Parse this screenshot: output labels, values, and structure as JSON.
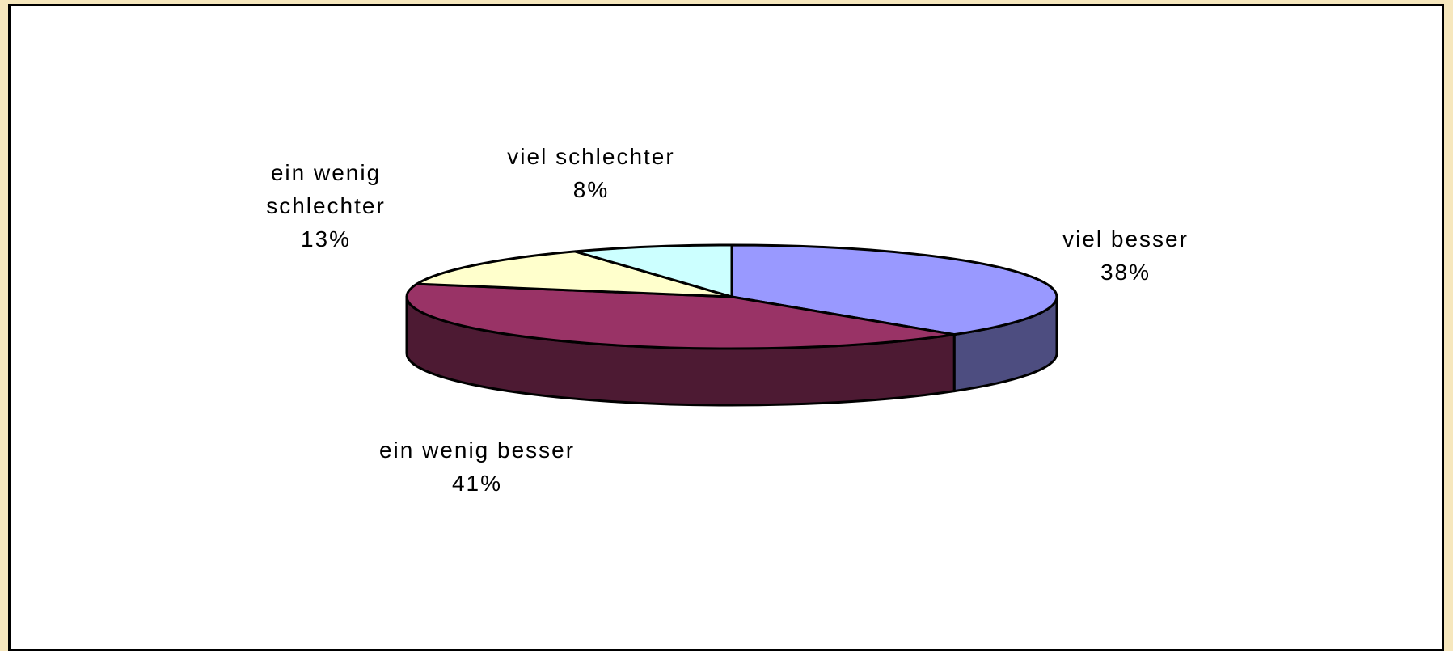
{
  "chart_data": {
    "type": "pie",
    "categories": [
      "viel besser",
      "ein wenig besser",
      "ein wenig schlechter",
      "viel schlechter"
    ],
    "values": [
      38,
      41,
      13,
      8
    ],
    "value_labels": [
      "38%",
      "41%",
      "13%",
      "8%"
    ],
    "colors": [
      "#9999ff",
      "#993366",
      "#ffffcc",
      "#ccffff"
    ]
  }
}
